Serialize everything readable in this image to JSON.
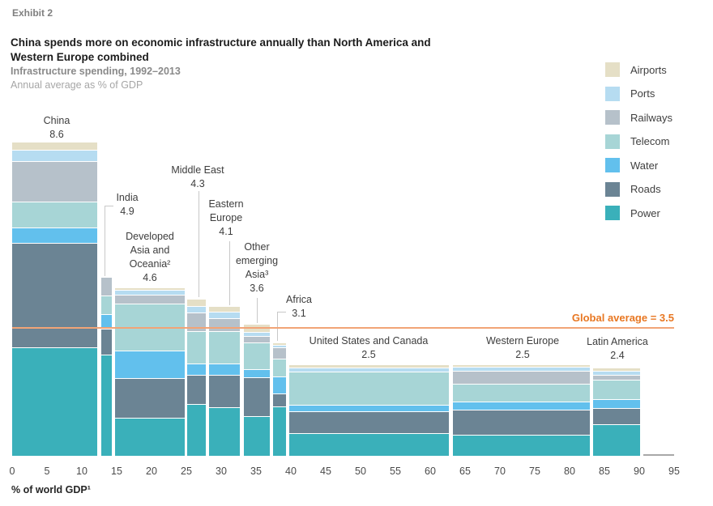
{
  "exhibit": "Exhibit 2",
  "title_lines": [
    "China spends more on economic infrastructure annually than North America and",
    "Western Europe combined"
  ],
  "subtitle": "Infrastructure spending, 1992–2013",
  "subtitle2": "Annual average as % of GDP",
  "legend": [
    {
      "label": "Airports",
      "color": "#e5dfc6"
    },
    {
      "label": "Ports",
      "color": "#b6dcf1"
    },
    {
      "label": "Railways",
      "color": "#b6c1ca"
    },
    {
      "label": "Telecom",
      "color": "#a7d5d6"
    },
    {
      "label": "Water",
      "color": "#62c0ed"
    },
    {
      "label": "Roads",
      "color": "#6b8494"
    },
    {
      "label": "Power",
      "color": "#3ab0ba"
    }
  ],
  "global_average": {
    "label": "Global average = 3.5",
    "value": 3.5
  },
  "axis": {
    "label": "% of world GDP¹",
    "ticks": [
      0,
      5,
      10,
      15,
      20,
      25,
      30,
      35,
      40,
      45,
      50,
      55,
      60,
      65,
      70,
      75,
      80,
      85,
      90,
      95
    ]
  },
  "chart_data": {
    "type": "marimekko-stacked-bar",
    "title": "China spends more on economic infrastructure annually than North America and Western Europe combined",
    "subtitle": "Infrastructure spending, 1992–2013",
    "xlabel": "% of world GDP¹",
    "ylabel": "Annual average as % of GDP",
    "x_range": [
      0,
      95
    ],
    "stack_order_top_to_bottom": [
      "Airports",
      "Ports",
      "Railways",
      "Telecom",
      "Water",
      "Roads",
      "Power"
    ],
    "regions": [
      {
        "name": "China",
        "label_lines": [
          "China",
          "8.6"
        ],
        "total": 8.6,
        "gdp_share_start": 0,
        "gdp_share_end": 12.4,
        "segments": [
          {
            "category": "Airports",
            "value": 0.2
          },
          {
            "category": "Ports",
            "value": 0.3
          },
          {
            "category": "Railways",
            "value": 1.1
          },
          {
            "category": "Telecom",
            "value": 0.7
          },
          {
            "category": "Water",
            "value": 0.4
          },
          {
            "category": "Roads",
            "value": 2.9
          },
          {
            "category": "Power",
            "value": 3.0
          }
        ]
      },
      {
        "name": "India",
        "label_lines": [
          "India",
          "4.9"
        ],
        "total": 4.9,
        "gdp_share_start": 12.8,
        "gdp_share_end": 14.5,
        "segments": [
          {
            "category": "Railways",
            "value": 0.5
          },
          {
            "category": "Telecom",
            "value": 0.5
          },
          {
            "category": "Water",
            "value": 0.4
          },
          {
            "category": "Roads",
            "value": 0.7
          },
          {
            "category": "Power",
            "value": 2.8
          }
        ]
      },
      {
        "name": "Developed Asia and Oceania",
        "label_lines": [
          "Developed",
          "Asia and",
          "Oceania²",
          "4.6"
        ],
        "total": 4.6,
        "gdp_share_start": 14.8,
        "gdp_share_end": 24.9,
        "segments": [
          {
            "category": "Airports",
            "value": 0.05
          },
          {
            "category": "Ports",
            "value": 0.1
          },
          {
            "category": "Railways",
            "value": 0.25
          },
          {
            "category": "Telecom",
            "value": 1.3
          },
          {
            "category": "Water",
            "value": 0.75
          },
          {
            "category": "Roads",
            "value": 1.1
          },
          {
            "category": "Power",
            "value": 1.05
          }
        ]
      },
      {
        "name": "Middle East",
        "label_lines": [
          "Middle East",
          "4.3"
        ],
        "total": 4.3,
        "gdp_share_start": 25.1,
        "gdp_share_end": 28.0,
        "segments": [
          {
            "category": "Airports",
            "value": 0.2
          },
          {
            "category": "Ports",
            "value": 0.15
          },
          {
            "category": "Railways",
            "value": 0.5
          },
          {
            "category": "Telecom",
            "value": 0.9
          },
          {
            "category": "Water",
            "value": 0.3
          },
          {
            "category": "Roads",
            "value": 0.8
          },
          {
            "category": "Power",
            "value": 1.45
          }
        ]
      },
      {
        "name": "Eastern Europe",
        "label_lines": [
          "Eastern",
          "Europe",
          "4.1"
        ],
        "total": 4.1,
        "gdp_share_start": 28.3,
        "gdp_share_end": 32.9,
        "segments": [
          {
            "category": "Airports",
            "value": 0.15
          },
          {
            "category": "Ports",
            "value": 0.15
          },
          {
            "category": "Railways",
            "value": 0.35
          },
          {
            "category": "Telecom",
            "value": 0.9
          },
          {
            "category": "Water",
            "value": 0.3
          },
          {
            "category": "Roads",
            "value": 0.9
          },
          {
            "category": "Power",
            "value": 1.35
          }
        ]
      },
      {
        "name": "Other emerging Asia",
        "label_lines": [
          "Other",
          "emerging",
          "Asia³",
          "3.6"
        ],
        "total": 3.6,
        "gdp_share_start": 33.2,
        "gdp_share_end": 37.1,
        "segments": [
          {
            "category": "Airports",
            "value": 0.2
          },
          {
            "category": "Ports",
            "value": 0.1
          },
          {
            "category": "Railways",
            "value": 0.15
          },
          {
            "category": "Telecom",
            "value": 0.75
          },
          {
            "category": "Water",
            "value": 0.2
          },
          {
            "category": "Roads",
            "value": 1.1
          },
          {
            "category": "Power",
            "value": 1.1
          }
        ]
      },
      {
        "name": "Africa",
        "label_lines": [
          "Africa",
          "3.1"
        ],
        "total": 3.1,
        "gdp_share_start": 37.4,
        "gdp_share_end": 39.5,
        "segments": [
          {
            "category": "Airports",
            "value": 0.05
          },
          {
            "category": "Ports",
            "value": 0.05
          },
          {
            "category": "Railways",
            "value": 0.3
          },
          {
            "category": "Telecom",
            "value": 0.5
          },
          {
            "category": "Water",
            "value": 0.45
          },
          {
            "category": "Roads",
            "value": 0.35
          },
          {
            "category": "Power",
            "value": 1.4
          }
        ]
      },
      {
        "name": "United States and Canada",
        "label_lines": [
          "United States and Canada",
          "2.5"
        ],
        "total": 2.5,
        "gdp_share_start": 39.8,
        "gdp_share_end": 62.9,
        "segments": [
          {
            "category": "Airports",
            "value": 0.07
          },
          {
            "category": "Ports",
            "value": 0.1
          },
          {
            "category": "Telecom",
            "value": 0.93
          },
          {
            "category": "Water",
            "value": 0.17
          },
          {
            "category": "Roads",
            "value": 0.61
          },
          {
            "category": "Power",
            "value": 0.62
          }
        ]
      },
      {
        "name": "Western Europe",
        "label_lines": [
          "Western Europe",
          "2.5"
        ],
        "total": 2.5,
        "gdp_share_start": 63.2,
        "gdp_share_end": 83.1,
        "segments": [
          {
            "category": "Airports",
            "value": 0.07
          },
          {
            "category": "Ports",
            "value": 0.08
          },
          {
            "category": "Railways",
            "value": 0.35
          },
          {
            "category": "Telecom",
            "value": 0.5
          },
          {
            "category": "Water",
            "value": 0.22
          },
          {
            "category": "Roads",
            "value": 0.7
          },
          {
            "category": "Power",
            "value": 0.58
          }
        ]
      },
      {
        "name": "Latin America",
        "label_lines": [
          "Latin America",
          "2.4"
        ],
        "total": 2.4,
        "gdp_share_start": 83.4,
        "gdp_share_end": 90.3,
        "segments": [
          {
            "category": "Airports",
            "value": 0.07
          },
          {
            "category": "Ports",
            "value": 0.1
          },
          {
            "category": "Railways",
            "value": 0.11
          },
          {
            "category": "Telecom",
            "value": 0.55
          },
          {
            "category": "Water",
            "value": 0.22
          },
          {
            "category": "Roads",
            "value": 0.45
          },
          {
            "category": "Power",
            "value": 0.9
          }
        ]
      }
    ],
    "remainder": {
      "gdp_share_start": 90.6,
      "gdp_share_end": 95.0
    }
  }
}
